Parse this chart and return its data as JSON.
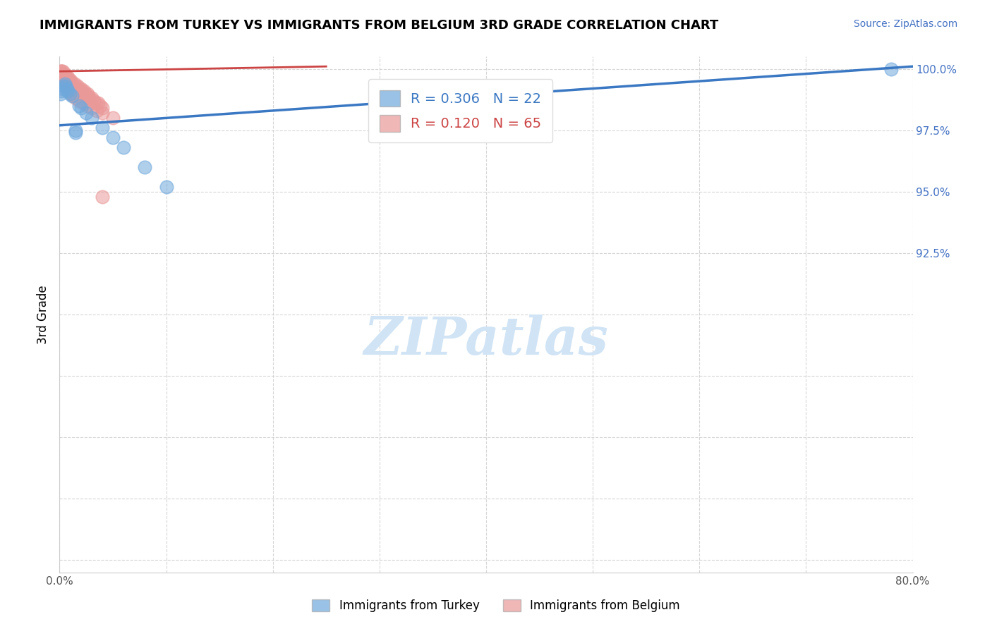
{
  "title": "IMMIGRANTS FROM TURKEY VS IMMIGRANTS FROM BELGIUM 3RD GRADE CORRELATION CHART",
  "source_text": "Source: ZipAtlas.com",
  "ylabel": "3rd Grade",
  "xlim": [
    0.0,
    0.8
  ],
  "ylim": [
    0.795,
    1.005
  ],
  "xticks": [
    0.0,
    0.1,
    0.2,
    0.3,
    0.4,
    0.5,
    0.6,
    0.7,
    0.8
  ],
  "yticks": [
    0.8,
    0.825,
    0.85,
    0.875,
    0.9,
    0.925,
    0.95,
    0.975,
    1.0
  ],
  "yticklabels": [
    "",
    "",
    "",
    "",
    "",
    "92.5%",
    "95.0%",
    "97.5%",
    "100.0%"
  ],
  "turkey_color": "#6fa8dc",
  "belgium_color": "#ea9999",
  "turkey_line_color": "#3b78c3",
  "belgium_line_color": "#cc4444",
  "turkey_R": 0.306,
  "turkey_N": 22,
  "belgium_R": 0.12,
  "belgium_N": 65,
  "watermark_text": "ZIPatlas",
  "watermark_color": "#d0e4f5",
  "turkey_scatter_x": [
    0.001,
    0.002,
    0.003,
    0.004,
    0.005,
    0.006,
    0.007,
    0.008,
    0.01,
    0.012,
    0.015,
    0.018,
    0.02,
    0.025,
    0.03,
    0.04,
    0.05,
    0.06,
    0.08,
    0.1,
    0.015,
    0.78
  ],
  "turkey_scatter_y": [
    0.99,
    0.991,
    0.992,
    0.993,
    0.994,
    0.993,
    0.992,
    0.991,
    0.99,
    0.989,
    0.975,
    0.985,
    0.984,
    0.982,
    0.98,
    0.976,
    0.972,
    0.968,
    0.96,
    0.952,
    0.974,
    1.0
  ],
  "belgium_scatter_x": [
    0.001,
    0.001,
    0.002,
    0.002,
    0.003,
    0.003,
    0.003,
    0.004,
    0.004,
    0.005,
    0.005,
    0.006,
    0.006,
    0.007,
    0.007,
    0.008,
    0.008,
    0.009,
    0.009,
    0.01,
    0.01,
    0.011,
    0.012,
    0.013,
    0.014,
    0.015,
    0.016,
    0.017,
    0.018,
    0.019,
    0.02,
    0.021,
    0.022,
    0.023,
    0.024,
    0.025,
    0.026,
    0.027,
    0.028,
    0.03,
    0.032,
    0.034,
    0.036,
    0.038,
    0.04,
    0.002,
    0.003,
    0.004,
    0.005,
    0.006,
    0.007,
    0.008,
    0.009,
    0.01,
    0.011,
    0.013,
    0.015,
    0.018,
    0.022,
    0.026,
    0.03,
    0.035,
    0.04,
    0.05,
    0.04
  ],
  "belgium_scatter_y": [
    0.999,
    0.998,
    0.999,
    0.998,
    0.999,
    0.998,
    0.997,
    0.998,
    0.997,
    0.998,
    0.997,
    0.997,
    0.996,
    0.997,
    0.996,
    0.996,
    0.995,
    0.996,
    0.995,
    0.995,
    0.994,
    0.995,
    0.994,
    0.993,
    0.994,
    0.993,
    0.992,
    0.993,
    0.992,
    0.991,
    0.992,
    0.991,
    0.99,
    0.991,
    0.99,
    0.989,
    0.99,
    0.989,
    0.988,
    0.988,
    0.987,
    0.986,
    0.986,
    0.985,
    0.984,
    0.999,
    0.998,
    0.997,
    0.996,
    0.995,
    0.994,
    0.993,
    0.992,
    0.991,
    0.99,
    0.989,
    0.988,
    0.987,
    0.986,
    0.985,
    0.984,
    0.983,
    0.982,
    0.98,
    0.948
  ],
  "turkey_trend_x": [
    0.0,
    0.8
  ],
  "turkey_trend_y": [
    0.978,
    1.0
  ],
  "belgium_trend_x": [
    0.0,
    0.25
  ],
  "belgium_trend_y": [
    0.998,
    1.0
  ]
}
